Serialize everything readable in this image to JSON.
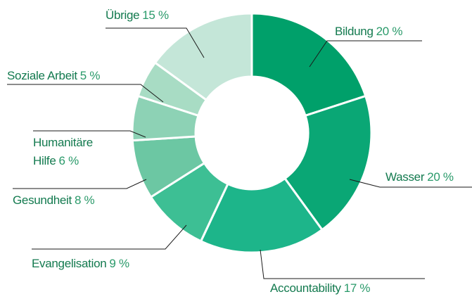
{
  "chart_data": {
    "type": "donut",
    "categories": [
      "Bildung",
      "Wasser",
      "Accountability",
      "Evangelisation",
      "Gesundheit",
      "Humanitäre Hilfe",
      "Soziale Arbeit",
      "Übrige"
    ],
    "values": [
      20,
      20,
      17,
      9,
      8,
      6,
      5,
      15
    ],
    "value_labels": [
      "20 %",
      "20 %",
      "17 %",
      "9 %",
      "8 %",
      "6 %",
      "5 %",
      "15 %"
    ],
    "colors": [
      "#00a06a",
      "#0aa775",
      "#1db58a",
      "#3dbf94",
      "#6cc7a3",
      "#8dd2b5",
      "#a8dcc4",
      "#c4e6d8"
    ]
  }
}
